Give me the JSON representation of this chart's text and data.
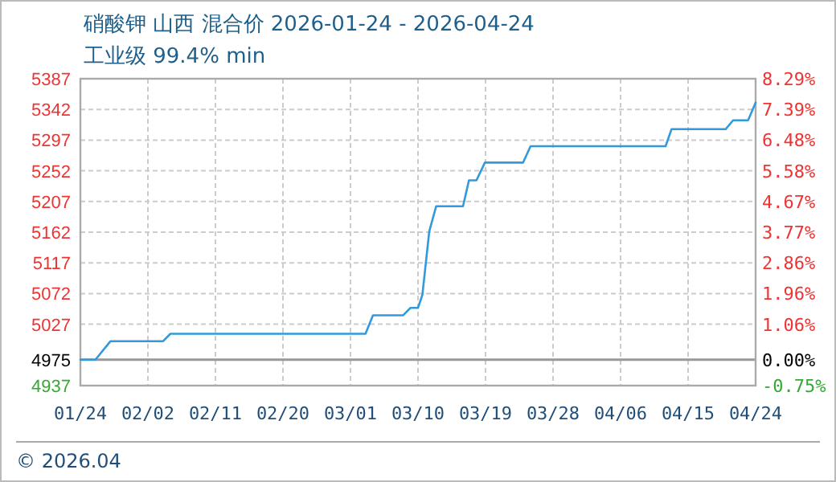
{
  "chart_data": {
    "type": "line",
    "title": "硝酸钾 山西 混合价 2026-01-24 - 2026-04-24",
    "subtitle": "工业级 99.4% min",
    "x": [
      "2026-01-24",
      "2026-01-26",
      "2026-01-28",
      "2026-02-04",
      "2026-02-05",
      "2026-03-03",
      "2026-03-04",
      "2026-03-08",
      "2026-03-09",
      "2026-03-10",
      "2026-03-10T14:00",
      "2026-03-11T12:00",
      "2026-03-12T10:00",
      "2026-03-16",
      "2026-03-16T19:00",
      "2026-03-17T19:00",
      "2026-03-18T22:00",
      "2026-03-24",
      "2026-03-25",
      "2026-04-12",
      "2026-04-12T19:00",
      "2026-04-20",
      "2026-04-21",
      "2026-04-23",
      "2026-04-24"
    ],
    "series": [
      {
        "color": "#3399dd",
        "values": [
          4975,
          4975,
          5002,
          5002,
          5013,
          5013,
          5040,
          5040,
          5051,
          5051,
          5070,
          5163,
          5200,
          5200,
          5238,
          5238,
          5264,
          5264,
          5288,
          5288,
          5313,
          5313,
          5326,
          5326,
          5352
        ]
      }
    ],
    "xlim": [
      "2026-01-24",
      "2026-04-24"
    ],
    "xticks": [
      {
        "value": "2026-01-24",
        "label": "01/24"
      },
      {
        "value": "2026-02-02",
        "label": "02/02"
      },
      {
        "value": "2026-02-11",
        "label": "02/11"
      },
      {
        "value": "2026-02-20",
        "label": "02/20"
      },
      {
        "value": "2026-03-01",
        "label": "03/01"
      },
      {
        "value": "2026-03-10",
        "label": "03/10"
      },
      {
        "value": "2026-03-19",
        "label": "03/19"
      },
      {
        "value": "2026-03-28",
        "label": "03/28"
      },
      {
        "value": "2026-04-06",
        "label": "04/06"
      },
      {
        "value": "2026-04-15",
        "label": "04/15"
      },
      {
        "value": "2026-04-24",
        "label": "04/24"
      }
    ],
    "ylim": [
      4937,
      5387
    ],
    "yticks": [
      4937,
      4975,
      5027,
      5072,
      5117,
      5162,
      5207,
      5252,
      5297,
      5342,
      5387
    ],
    "y2lim": [
      -0.75,
      8.29
    ],
    "y2ticks": [
      {
        "value": -0.75,
        "label": "-0.75%"
      },
      {
        "value": 0,
        "label": "0.00%"
      },
      {
        "value": 1.06,
        "label": "1.06%"
      },
      {
        "value": 1.96,
        "label": "1.96%"
      },
      {
        "value": 2.86,
        "label": "2.86%"
      },
      {
        "value": 3.77,
        "label": "3.77%"
      },
      {
        "value": 4.67,
        "label": "4.67%"
      },
      {
        "value": 5.58,
        "label": "5.58%"
      },
      {
        "value": 6.48,
        "label": "6.48%"
      },
      {
        "value": 7.39,
        "label": "7.39%"
      },
      {
        "value": 8.29,
        "label": "8.29%"
      }
    ],
    "ref_lines": [
      {
        "axis": "y",
        "value": 4975,
        "color": "#999999"
      }
    ],
    "grid": true,
    "annotations": [
      "© 2026.04"
    ]
  }
}
